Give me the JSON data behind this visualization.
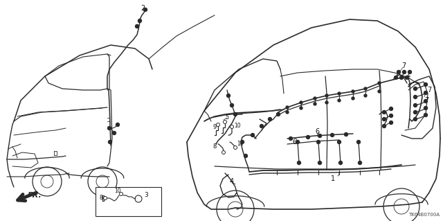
{
  "background_color": "#ffffff",
  "diagram_code": "TK64B0700A",
  "line_color": "#2a2a2a",
  "line_width": 0.9,
  "label_fontsize": 6.5
}
